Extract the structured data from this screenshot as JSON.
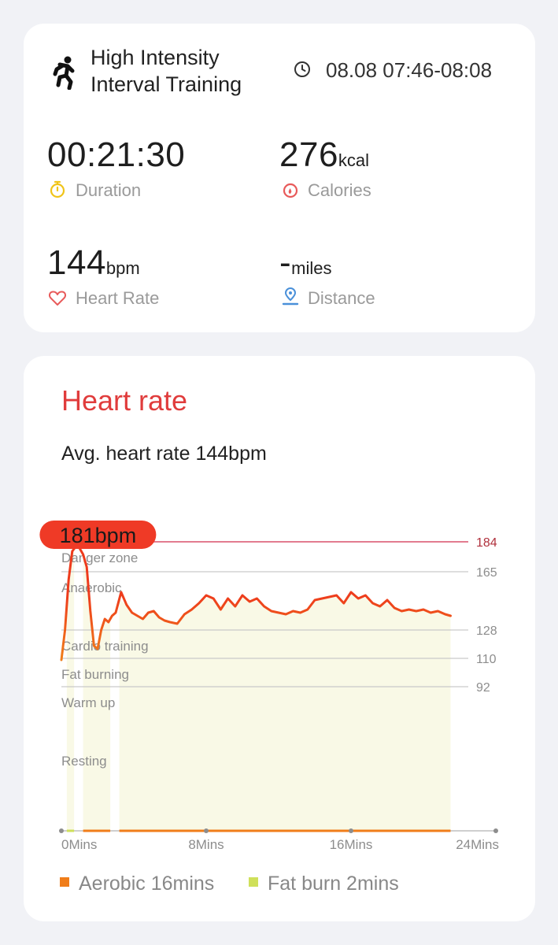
{
  "summary": {
    "activity": "High Intensity Interval Training",
    "time_range": "08.08 07:46-08:08",
    "duration": {
      "value": "00:21:30",
      "label": "Duration"
    },
    "calories": {
      "value": "276",
      "unit": "kcal",
      "label": "Calories"
    },
    "heart_rate": {
      "value": "144",
      "unit": "bpm",
      "label": "Heart Rate"
    },
    "distance": {
      "value": "-",
      "unit": "miles",
      "label": "Distance"
    }
  },
  "heart_rate": {
    "title": "Heart rate",
    "avg_text": "Avg. heart rate 144bpm",
    "max_badge": "181bpm"
  },
  "colors": {
    "accent_red": "#e03c3c",
    "line_orange": "#f07d1a",
    "line_red": "#ee3b1c",
    "aerobic": "#f07d1a",
    "fat_burn": "#cfe05a",
    "fill": "#f9f9e6",
    "duration_icon": "#f0c419",
    "calories_icon": "#e85a5a",
    "heart_icon": "#e85a5a",
    "distance_icon": "#4a90d9"
  },
  "legend": [
    {
      "label": "Aerobic 16mins",
      "color": "#f07d1a"
    },
    {
      "label": "Fat burn 2mins",
      "color": "#cfe05a"
    }
  ],
  "chart_data": {
    "type": "line",
    "title": "Heart rate",
    "x_unit": "minutes",
    "xlim": [
      0,
      24
    ],
    "x_ticks": [
      {
        "value": 0,
        "label": "0Mins"
      },
      {
        "value": 8,
        "label": "8Mins"
      },
      {
        "value": 16,
        "label": "16Mins"
      },
      {
        "value": 24,
        "label": "24Mins"
      }
    ],
    "ylim": [
      75,
      184
    ],
    "zones": [
      {
        "name": "Danger zone",
        "threshold": 184
      },
      {
        "name": "Anaerobic",
        "threshold": 165
      },
      {
        "name": "Cardio training",
        "threshold": 128
      },
      {
        "name": "Fat burning",
        "threshold": 110
      },
      {
        "name": "Warm up",
        "threshold": 92
      },
      {
        "name": "Resting",
        "threshold": null
      }
    ],
    "zone_tick_labels": [
      "184",
      "165",
      "128",
      "110",
      "92"
    ],
    "max": {
      "x": 0.8,
      "y": 181,
      "label": "181bpm"
    },
    "avg": 144,
    "series": [
      {
        "x": [
          0,
          0.2,
          0.4,
          0.6,
          0.8,
          1.0,
          1.2,
          1.4,
          1.6,
          1.8,
          2.0,
          2.2,
          2.4,
          2.6,
          2.8,
          3.0,
          3.3,
          3.6,
          3.9,
          4.2,
          4.5,
          4.8,
          5.1,
          5.4,
          5.7,
          6.0,
          6.4,
          6.8,
          7.2,
          7.6,
          8.0,
          8.4,
          8.8,
          9.2,
          9.6,
          10.0,
          10.4,
          10.8,
          11.2,
          11.6,
          12.0,
          12.4,
          12.8,
          13.2,
          13.6,
          14.0,
          14.4,
          14.8,
          15.2,
          15.6,
          16.0,
          16.4,
          16.8,
          17.2,
          17.6,
          18.0,
          18.4,
          18.8,
          19.2,
          19.6,
          20.0,
          20.4,
          20.8,
          21.2,
          21.5
        ],
        "y": [
          109,
          128,
          160,
          178,
          181,
          180,
          176,
          168,
          140,
          118,
          116,
          128,
          135,
          133,
          137,
          139,
          152,
          144,
          139,
          137,
          135,
          139,
          140,
          136,
          134,
          133,
          132,
          138,
          141,
          145,
          150,
          148,
          141,
          148,
          143,
          150,
          146,
          148,
          143,
          140,
          139,
          138,
          140,
          139,
          141,
          147,
          148,
          149,
          150,
          145,
          152,
          148,
          150,
          145,
          143,
          147,
          142,
          140,
          141,
          140,
          141,
          139,
          140,
          138,
          137
        ]
      }
    ],
    "zone_bars": [
      {
        "zone": "Fat burning",
        "from": 0.3,
        "to": 0.7
      },
      {
        "zone": "Aerobic",
        "from": 1.2,
        "to": 2.7
      },
      {
        "zone": "Aerobic",
        "from": 3.2,
        "to": 21.5
      }
    ],
    "grid": true
  }
}
